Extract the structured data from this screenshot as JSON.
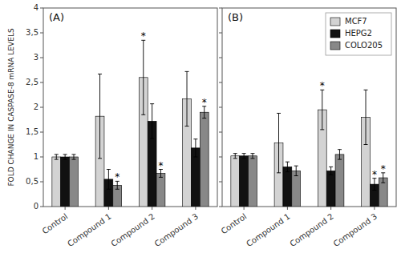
{
  "chart_data": [
    {
      "type": "bar",
      "title": "(A)",
      "ylabel": "FOLD CHANGE IN CASPASE-8 mRNA LEVELS",
      "categories": [
        "Control",
        "Compound 1",
        "Compound 2",
        "Compound 3"
      ],
      "series": [
        {
          "name": "MCF7",
          "color": "#d3d3d3",
          "values": [
            1.0,
            1.82,
            2.6,
            2.17
          ],
          "errors": [
            0.05,
            0.85,
            0.75,
            0.55
          ],
          "stars": [
            false,
            false,
            true,
            false
          ]
        },
        {
          "name": "HEPG2",
          "color": "#111111",
          "values": [
            1.0,
            0.55,
            1.72,
            1.18
          ],
          "errors": [
            0.05,
            0.2,
            0.35,
            0.18
          ],
          "stars": [
            false,
            false,
            false,
            false
          ]
        },
        {
          "name": "COLO205",
          "color": "#888888",
          "values": [
            1.0,
            0.43,
            0.67,
            1.9
          ],
          "errors": [
            0.05,
            0.08,
            0.08,
            0.12
          ],
          "stars": [
            false,
            true,
            true,
            true
          ]
        }
      ],
      "annotation_text": "*",
      "ylim": [
        0,
        4
      ],
      "yticks": [
        0,
        {
          "value": 0.5,
          "label": "0,5"
        },
        1,
        {
          "value": 1.5,
          "label": "1,5"
        },
        2,
        {
          "value": 2.5,
          "label": "2,5"
        },
        3,
        {
          "value": 3.5,
          "label": "3,5"
        },
        4
      ],
      "grid": false,
      "legend": false
    },
    {
      "type": "bar",
      "title": "(B)",
      "categories": [
        "Control",
        "Compound 1",
        "Compound 2",
        "Compound 3"
      ],
      "series": [
        {
          "name": "MCF7",
          "color": "#d3d3d3",
          "values": [
            1.02,
            1.28,
            1.95,
            1.8
          ],
          "errors": [
            0.05,
            0.6,
            0.4,
            0.55
          ],
          "stars": [
            false,
            false,
            true,
            false
          ]
        },
        {
          "name": "HEPG2",
          "color": "#111111",
          "values": [
            1.02,
            0.8,
            0.72,
            0.45
          ],
          "errors": [
            0.05,
            0.1,
            0.08,
            0.12
          ],
          "stars": [
            false,
            false,
            false,
            true
          ]
        },
        {
          "name": "COLO205",
          "color": "#888888",
          "values": [
            1.02,
            0.72,
            1.05,
            0.58
          ],
          "errors": [
            0.05,
            0.1,
            0.1,
            0.1
          ],
          "stars": [
            false,
            false,
            false,
            true
          ]
        }
      ],
      "annotation_text": "*",
      "ylim": [
        0,
        4
      ],
      "yticks": [
        0,
        {
          "value": 0.5,
          "label": "0,5"
        },
        1,
        {
          "value": 1.5,
          "label": "1,5"
        },
        2,
        {
          "value": 2.5,
          "label": "2,5"
        },
        3,
        {
          "value": 3.5,
          "label": "3,5"
        },
        4
      ],
      "tick_labels": "x",
      "grid": false,
      "legend": "upper right"
    }
  ]
}
